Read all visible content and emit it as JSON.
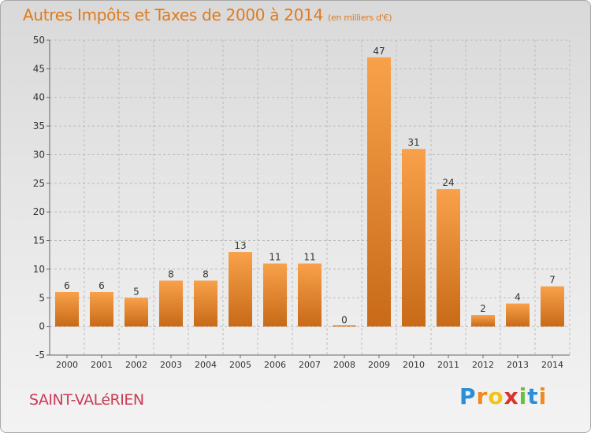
{
  "header": {
    "title": "Autres Impôts et Taxes de 2000 à 2014",
    "unit": "(en milliers d'€)"
  },
  "commune": "SAINT-VALéRIEN",
  "logo": {
    "letters": [
      "P",
      "r",
      "o",
      "x",
      "i",
      "t",
      "i"
    ],
    "colors": [
      "#2a8fd6",
      "#f08a1c",
      "#f0c419",
      "#d9332b",
      "#6abf3f",
      "#2a8fd6",
      "#f08a1c"
    ]
  },
  "colors": {
    "bar_light": "#f8a14a",
    "bar_dark": "#c86a18",
    "title": "#e07a1c",
    "commune": "#cc3a55",
    "grid": "#bbbbbb"
  },
  "chart_data": {
    "type": "bar",
    "title": "Autres Impôts et Taxes de 2000 à 2014",
    "subtitle": "(en milliers d'€)",
    "categories": [
      "2000",
      "2001",
      "2002",
      "2003",
      "2004",
      "2005",
      "2006",
      "2007",
      "2008",
      "2009",
      "2010",
      "2011",
      "2012",
      "2013",
      "2014"
    ],
    "values": [
      6,
      6,
      5,
      8,
      8,
      13,
      11,
      11,
      0,
      47,
      31,
      24,
      2,
      4,
      7
    ],
    "ylim": [
      -5,
      50
    ],
    "yticks": [
      -5,
      0,
      5,
      10,
      15,
      20,
      25,
      30,
      35,
      40,
      45,
      50
    ],
    "grid": true,
    "xlabel": "",
    "ylabel": ""
  }
}
